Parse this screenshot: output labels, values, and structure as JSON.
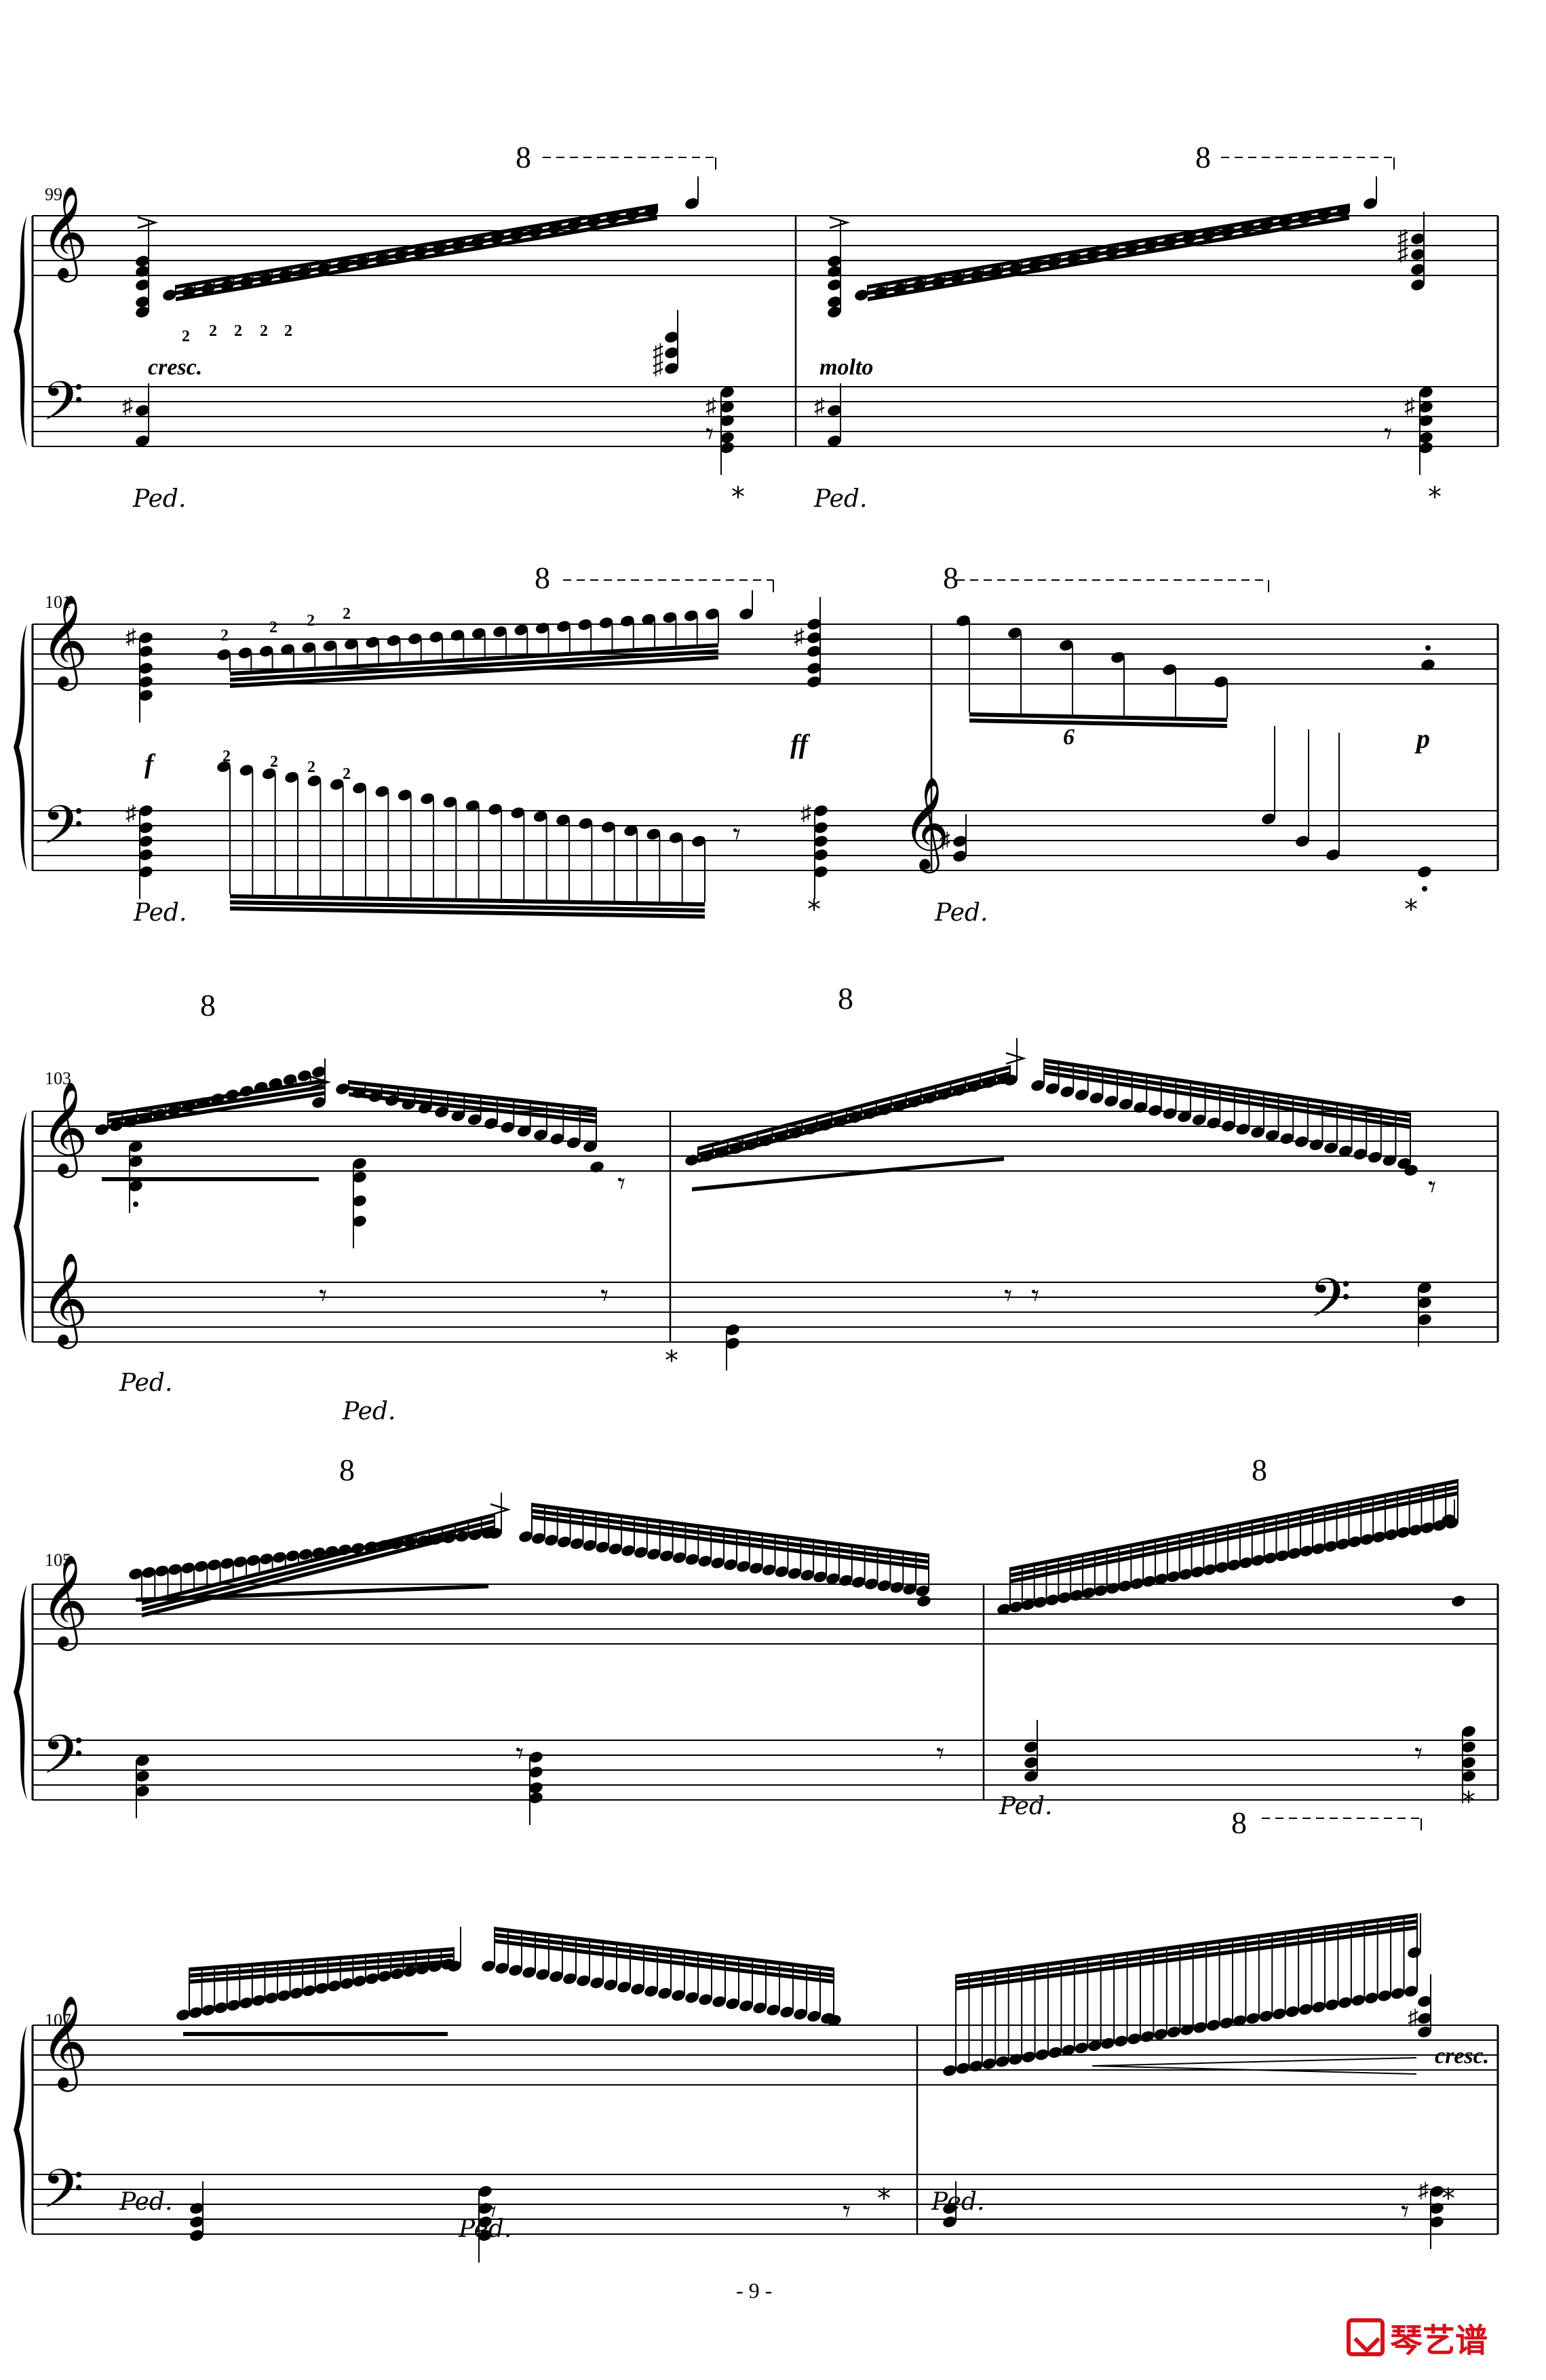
{
  "page_number": "- 9 -",
  "logo_text": "琴艺谱",
  "systems": [
    {
      "measures": [
        "99",
        ""
      ],
      "octave_marks": [
        "8",
        "8"
      ],
      "expressions": [
        "cresc.",
        "molto"
      ],
      "fingerings": [
        "2",
        "2",
        "2",
        "2",
        "2"
      ],
      "pedal_on": [
        "Ped.",
        "Ped."
      ],
      "pedal_off": [
        "*",
        "*"
      ]
    },
    {
      "measures": [
        "101",
        ""
      ],
      "octave_marks": [
        "8",
        "8"
      ],
      "dynamics": [
        "f",
        "ff",
        "p"
      ],
      "tuplet": "6",
      "fingerings": [
        "2",
        "2",
        "2",
        "2",
        "2",
        "2",
        "2",
        "2"
      ],
      "pedal_on": [
        "Ped.",
        "Ped."
      ],
      "pedal_off": [
        "*",
        "*"
      ]
    },
    {
      "measures": [
        "103",
        ""
      ],
      "octave_marks": [
        "8",
        "8"
      ],
      "pedal_on": [
        "Ped.",
        "Ped."
      ],
      "pedal_off": [
        "*"
      ]
    },
    {
      "measures": [
        "105",
        ""
      ],
      "octave_marks": [
        "8",
        "8"
      ],
      "pedal_on": [
        "Ped."
      ],
      "pedal_off": [
        "*"
      ]
    },
    {
      "measures": [
        "107",
        ""
      ],
      "octave_marks": [
        "8"
      ],
      "expressions": [
        "cresc."
      ],
      "pedal_on": [
        "Ped.",
        "Ped.",
        "Ped."
      ],
      "pedal_off": [
        "*",
        "*"
      ]
    }
  ]
}
